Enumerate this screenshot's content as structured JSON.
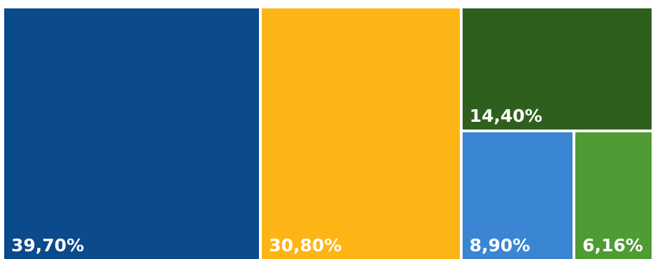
{
  "chart_data": {
    "type": "treemap",
    "title": "",
    "tiles": [
      {
        "label": "39,70%",
        "value": 39.7,
        "color": "#0b4a8b"
      },
      {
        "label": "30,80%",
        "value": 30.8,
        "color": "#fdb515"
      },
      {
        "label": "14,40%",
        "value": 14.4,
        "color": "#2f5f1d"
      },
      {
        "label": "8,90%",
        "value": 8.9,
        "color": "#3a86d3"
      },
      {
        "label": "6,16%",
        "value": 6.16,
        "color": "#4f9b34"
      }
    ]
  }
}
